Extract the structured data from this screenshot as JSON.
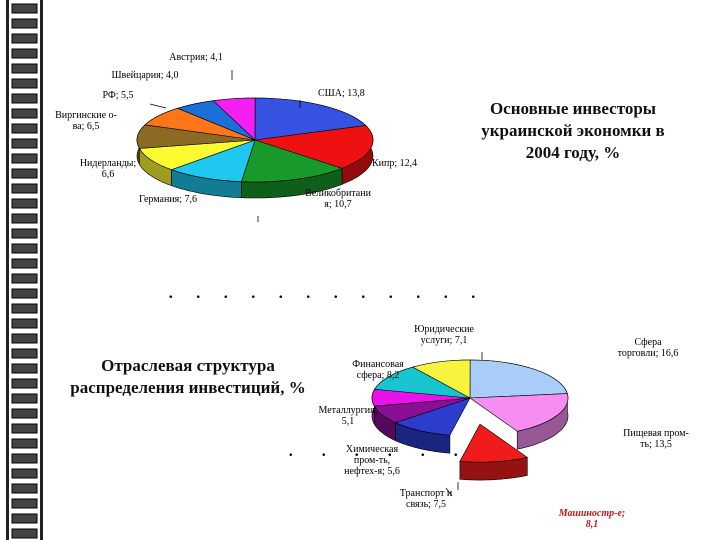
{
  "slide": {
    "title_top": "Основные инвесторы украинской экономки в 2004 году, %",
    "title_bottom": "Отраслевая структура распределения инвестиций, %"
  },
  "chart_data": [
    {
      "type": "pie",
      "title": "Основные инвесторы украинской экономки в 2004 году, %",
      "categories": [
        "США",
        "Кипр",
        "Великобритания",
        "Германия",
        "Нидерланды",
        "Виргинские о-ва",
        "РФ",
        "Швейцария",
        "Австрия"
      ],
      "label_texts": [
        "США; 13,8",
        "Кипр; 12,4",
        "Великобритания; 10,7",
        "Германия; 7,6",
        "Нидерланды; 6,6",
        "Виргинские о-ва; 6,5",
        "РФ; 5,5",
        "Швейцария; 4,0",
        "Австрия; 4,1"
      ],
      "values": [
        13.8,
        12.4,
        10.7,
        7.6,
        6.6,
        6.5,
        5.5,
        4.0,
        4.1
      ],
      "colors": [
        "#3553e0",
        "#ee1111",
        "#179a2a",
        "#1ec8f0",
        "#fbfb32",
        "#8c6a24",
        "#ff7519",
        "#1c6fdb",
        "#f31ff3"
      ]
    },
    {
      "type": "pie",
      "title": "Отраслевая структура распределения инвестиций, %",
      "categories": [
        "Сфера торговли",
        "Пищевая пром-ть",
        "Машиностр-е",
        "Транспорт и связь",
        "Химическая пром-ть, нефтех-я",
        "Металлургия",
        "Финансовая сфера",
        "Юридические услуги"
      ],
      "label_texts": [
        "Сфера торговли; 16,6",
        "Пищевая пром-ть; 13,5",
        "Машиностр-е; 8,1",
        "Транспорт и связь; 7,5",
        "Химическая пром-ть, нефтех-я; 5,6",
        "Металлургия; 5,1",
        "Финансовая сфера; 8,2",
        "Юридические услуги; 7,1"
      ],
      "values": [
        16.6,
        13.5,
        8.1,
        7.5,
        5.6,
        5.1,
        8.2,
        7.1
      ],
      "colors": [
        "#a9cdf6",
        "#f58ef0",
        "#f21b1b",
        "#2c3ccd",
        "#8a0f95",
        "#ea12ea",
        "#16c5cf",
        "#f7f33e"
      ]
    }
  ]
}
